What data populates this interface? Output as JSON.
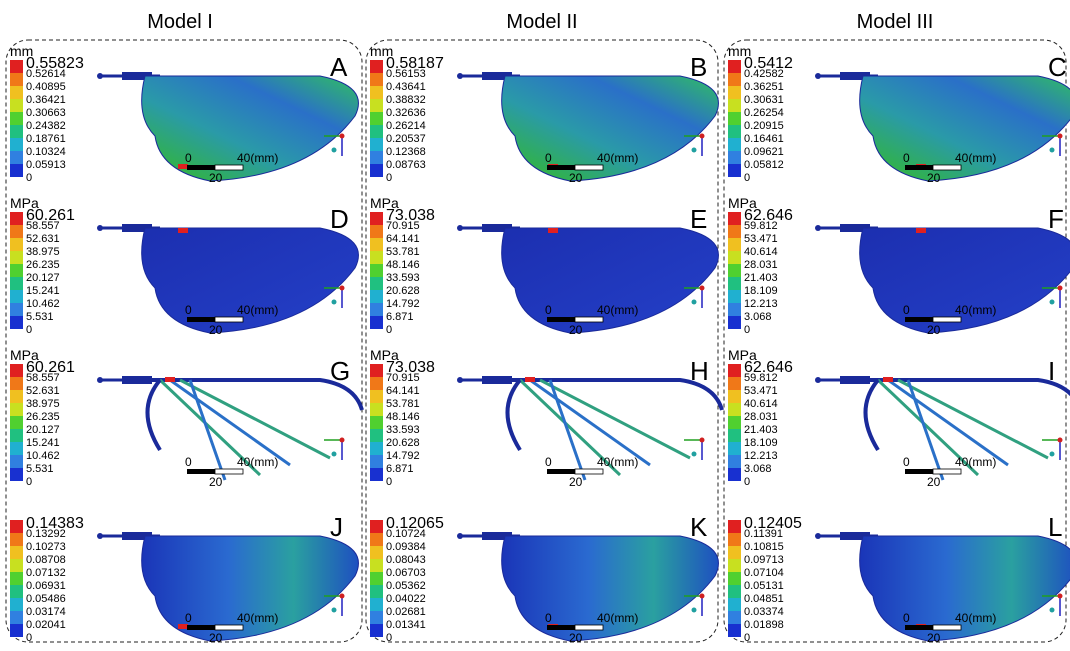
{
  "headers": [
    "Model I",
    "Model II",
    "Model III"
  ],
  "scale_bar": {
    "zero": "0",
    "length": "40(mm)",
    "half": "20"
  },
  "panels": [
    {
      "letter": "A",
      "unit": "mm",
      "legend": [
        "0.55823",
        "0.52614",
        "0.40895",
        "0.36421",
        "0.30663",
        "0.24382",
        "0.18761",
        "0.10324",
        "0.05913",
        "0"
      ]
    },
    {
      "letter": "B",
      "unit": "mm",
      "legend": [
        "0.58187",
        "0.56153",
        "0.43641",
        "0.38832",
        "0.32636",
        "0.26214",
        "0.20537",
        "0.12368",
        "0.08763",
        "0"
      ]
    },
    {
      "letter": "C",
      "unit": "mm",
      "legend": [
        "0.5412",
        "0.42582",
        "0.36251",
        "0.30631",
        "0.26254",
        "0.20915",
        "0.16461",
        "0.09621",
        "0.05812",
        "0"
      ]
    },
    {
      "letter": "D",
      "unit": "MPa",
      "legend": [
        "60.261",
        "58.557",
        "52.631",
        "38.975",
        "26.235",
        "20.127",
        "15.241",
        "10.462",
        "5.531",
        "0"
      ]
    },
    {
      "letter": "E",
      "unit": "MPa",
      "legend": [
        "73.038",
        "70.915",
        "64.141",
        "53.781",
        "48.146",
        "33.593",
        "20.628",
        "14.792",
        "6.871",
        "0"
      ]
    },
    {
      "letter": "F",
      "unit": "MPa",
      "legend": [
        "62.646",
        "59.812",
        "53.471",
        "40.614",
        "28.031",
        "21.403",
        "18.109",
        "12.213",
        "3.068",
        "0"
      ]
    },
    {
      "letter": "G",
      "unit": "MPa",
      "legend": [
        "60.261",
        "58.557",
        "52.631",
        "38.975",
        "26.235",
        "20.127",
        "15.241",
        "10.462",
        "5.531",
        "0"
      ]
    },
    {
      "letter": "H",
      "unit": "MPa",
      "legend": [
        "73.038",
        "70.915",
        "64.141",
        "53.781",
        "48.146",
        "33.593",
        "20.628",
        "14.792",
        "6.871",
        "0"
      ]
    },
    {
      "letter": "I",
      "unit": "MPa",
      "legend": [
        "62.646",
        "59.812",
        "53.471",
        "40.614",
        "28.031",
        "21.403",
        "18.109",
        "12.213",
        "3.068",
        "0"
      ]
    },
    {
      "letter": "J",
      "legend": [
        "0.14383",
        "0.13292",
        "0.10273",
        "0.08708",
        "0.07132",
        "0.06931",
        "0.05486",
        "0.03174",
        "0.02041",
        "0"
      ]
    },
    {
      "letter": "K",
      "legend": [
        "0.12065",
        "0.10724",
        "0.09384",
        "0.08043",
        "0.06703",
        "0.05362",
        "0.04022",
        "0.02681",
        "0.01341",
        "0"
      ]
    },
    {
      "letter": "L",
      "legend": [
        "0.12405",
        "0.11391",
        "0.10815",
        "0.09713",
        "0.07104",
        "0.05131",
        "0.04851",
        "0.03374",
        "0.01898",
        "0"
      ]
    }
  ]
}
